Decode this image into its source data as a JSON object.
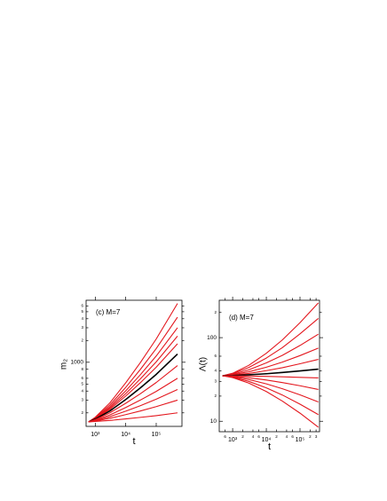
{
  "chart_data": [
    {
      "type": "line",
      "annotation": "(c)  M=7",
      "xlabel": "t",
      "ylabel": "m₂",
      "xscale": "log",
      "yscale": "log",
      "xlim": [
        500,
        700000
      ],
      "ylim": [
        130,
        7200
      ],
      "xticks": [
        {
          "value": 1000,
          "label": "10³"
        },
        {
          "value": 10000,
          "label": "10⁴"
        },
        {
          "value": 100000,
          "label": "10⁵"
        }
      ],
      "yticks": [
        {
          "value": 200,
          "label": "2"
        },
        {
          "value": 300,
          "label": "3"
        },
        {
          "value": 400,
          "label": "4"
        },
        {
          "value": 500,
          "label": "5"
        },
        {
          "value": 600,
          "label": "6"
        },
        {
          "value": 800,
          "label": "8"
        },
        1000,
        {
          "value": 2000,
          "label": "2"
        },
        {
          "value": 3000,
          "label": "3"
        },
        {
          "value": 4000,
          "label": "4"
        },
        {
          "value": 5000,
          "label": "5"
        },
        {
          "value": 6000,
          "label": "6"
        }
      ],
      "x": [
        600,
        1000,
        3000,
        10000,
        30000,
        100000,
        500000
      ],
      "series": [
        {
          "color": "#e3161d",
          "values": [
            150,
            174,
            274,
            520,
            987,
            2098,
            6500
          ]
        },
        {
          "color": "#e3161d",
          "values": [
            150,
            171,
            256,
            450,
            794,
            1545,
            4200
          ]
        },
        {
          "color": "#e3161d",
          "values": [
            150,
            169,
            242,
            403,
            671,
            1221,
            3000
          ]
        },
        {
          "color": "#e3161d",
          "values": [
            150,
            167,
            232,
            369,
            587,
            1014,
            2300
          ]
        },
        {
          "color": "#e3161d",
          "values": [
            150,
            166,
            223,
            341,
            520,
            855,
            1800
          ]
        },
        {
          "color": "#000000",
          "values": [
            150,
            164,
            212,
            306,
            442,
            680,
            1300
          ]
        },
        {
          "color": "#e3161d",
          "values": [
            150,
            161,
            200,
            271,
            367,
            525,
            900
          ]
        },
        {
          "color": "#e3161d",
          "values": [
            150,
            159,
            187,
            237,
            300,
            396,
            600
          ]
        },
        {
          "color": "#e3161d",
          "values": [
            150,
            156,
            177,
            211,
            251,
            309,
            420
          ]
        },
        {
          "color": "#e3161d",
          "values": [
            150,
            154,
            168,
            189,
            212,
            244,
            300
          ]
        },
        {
          "color": "#e3161d",
          "values": [
            150,
            152,
            157,
            165,
            173,
            183,
            200
          ]
        }
      ]
    },
    {
      "type": "line",
      "annotation": "(d) M=7",
      "xlabel": "t",
      "ylabel": "Λ(t)",
      "xscale": "log",
      "yscale": "log",
      "xlim": [
        400,
        380000
      ],
      "ylim": [
        7.5,
        280
      ],
      "xticks": [
        {
          "value": 600,
          "label": "6"
        },
        {
          "value": 1000,
          "label": "10³"
        },
        {
          "value": 2000,
          "label": "2"
        },
        {
          "value": 4000,
          "label": "4"
        },
        {
          "value": 6000,
          "label": "6"
        },
        {
          "value": 10000,
          "label": "10⁴"
        },
        {
          "value": 20000,
          "label": "2"
        },
        {
          "value": 40000,
          "label": "4"
        },
        {
          "value": 60000,
          "label": "6"
        },
        {
          "value": 100000,
          "label": "10⁵"
        },
        {
          "value": 200000,
          "label": "2"
        },
        {
          "value": 300000,
          "label": "3"
        }
      ],
      "yticks": [
        10,
        {
          "value": 20,
          "label": "2"
        },
        {
          "value": 30,
          "label": "3"
        },
        {
          "value": 40,
          "label": "4"
        },
        {
          "value": 60,
          "label": "6"
        },
        100,
        {
          "value": 200,
          "label": "2"
        }
      ],
      "x": [
        500,
        1000,
        3000,
        10000,
        30000,
        100000,
        350000
      ],
      "series": [
        {
          "color": "#e3161d",
          "values": [
            35,
            37.5,
            46.6,
            65,
            94,
            151,
            260
          ]
        },
        {
          "color": "#e3161d",
          "values": [
            35,
            37,
            43.9,
            57,
            76,
            111,
            170
          ]
        },
        {
          "color": "#e3161d",
          "values": [
            35,
            36.4,
            41.2,
            49.9,
            61.5,
            80.6,
            110
          ]
        },
        {
          "color": "#e3161d",
          "values": [
            35,
            36,
            39,
            44.3,
            51,
            61,
            75
          ]
        },
        {
          "color": "#e3161d",
          "values": [
            35,
            35.6,
            37.3,
            40.3,
            43.7,
            48.7,
            55
          ]
        },
        {
          "color": "#000000",
          "values": [
            35,
            35.2,
            35.9,
            37,
            38.3,
            40,
            42
          ]
        },
        {
          "color": "#e3161d",
          "values": [
            35,
            35,
            34.7,
            34.4,
            34,
            33.5,
            33
          ]
        },
        {
          "color": "#e3161d",
          "values": [
            35,
            34.5,
            33.2,
            31.1,
            29,
            26.6,
            24
          ]
        },
        {
          "color": "#e3161d",
          "values": [
            35,
            34.1,
            31.6,
            28,
            24.5,
            20.7,
            17
          ]
        },
        {
          "color": "#e3161d",
          "values": [
            35,
            33.7,
            30,
            25.1,
            20.6,
            16,
            12
          ]
        },
        {
          "color": "#e3161d",
          "values": [
            35,
            33.3,
            28.6,
            22.7,
            17.4,
            12.5,
            8.5
          ]
        }
      ]
    }
  ]
}
